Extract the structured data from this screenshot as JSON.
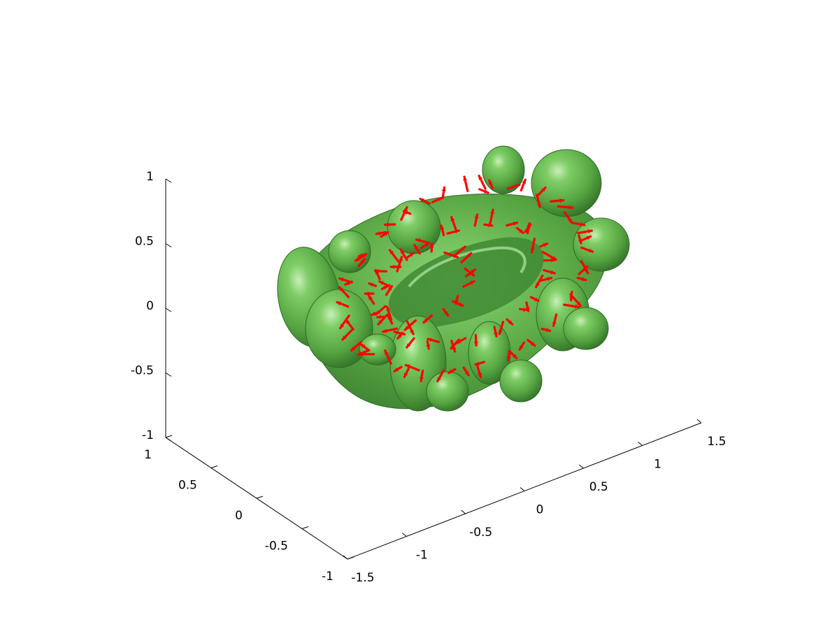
{
  "chart_data": {
    "type": "surface3d",
    "title": "",
    "xlabel": "",
    "ylabel": "",
    "zlabel": "",
    "xlim": [
      -1.5,
      1.5
    ],
    "ylim": [
      -1,
      1
    ],
    "zlim": [
      -1,
      1
    ],
    "x_ticks": [
      "-1.5",
      "-1",
      "-0.5",
      "0",
      "0.5",
      "1",
      "1.5"
    ],
    "y_ticks": [
      "-1",
      "-0.5",
      "0",
      "0.5",
      "1"
    ],
    "z_ticks": [
      "-1",
      "-0.5",
      "0",
      "0.5",
      "1"
    ],
    "grid": false,
    "series": [
      {
        "kind": "isosurface",
        "color": "#5aa845"
      },
      {
        "kind": "quiver",
        "color": "#ff0000"
      }
    ]
  }
}
